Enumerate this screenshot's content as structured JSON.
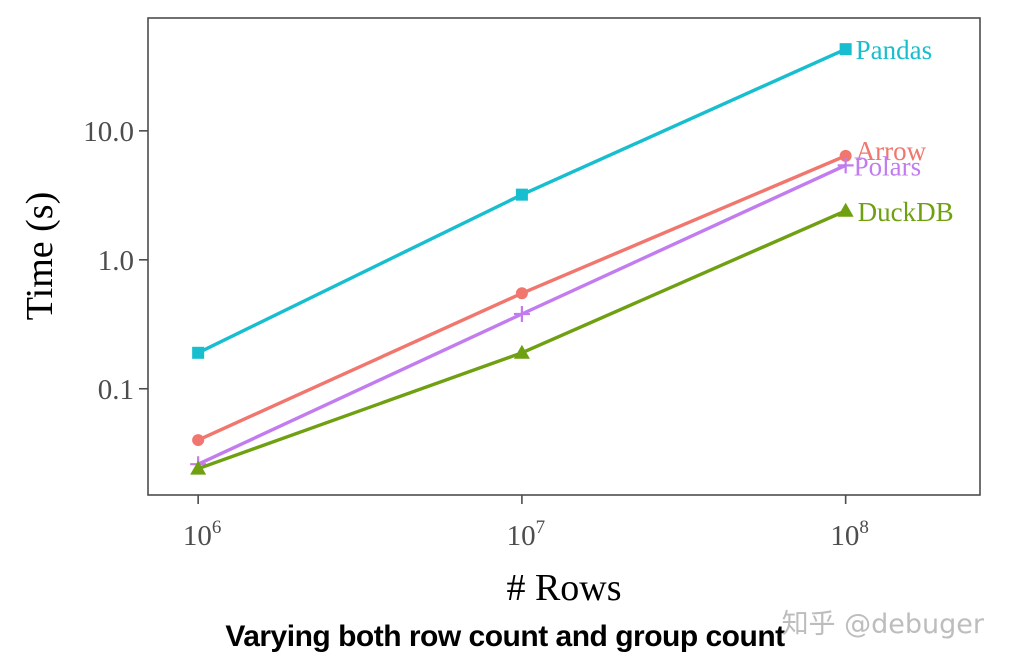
{
  "chart_data": {
    "type": "line",
    "title": "",
    "xlabel": "# Rows",
    "ylabel": "Time (s)",
    "x_scale": "log",
    "y_scale": "log",
    "x": [
      1000000,
      10000000,
      100000000
    ],
    "x_ticks": [
      {
        "value": 1000000,
        "base": "10",
        "exp": "6"
      },
      {
        "value": 10000000,
        "base": "10",
        "exp": "7"
      },
      {
        "value": 100000000,
        "base": "10",
        "exp": "8"
      }
    ],
    "y_ticks": [
      {
        "value": 0.1,
        "label": "0.1"
      },
      {
        "value": 1.0,
        "label": "1.0"
      },
      {
        "value": 10.0,
        "label": "10.0"
      }
    ],
    "xlim": [
      700000,
      260000000
    ],
    "ylim": [
      0.015,
      75
    ],
    "grid": false,
    "legend": "direct-labels-at-line-ends",
    "series": [
      {
        "name": "Pandas",
        "color": "#17becf",
        "marker": "square",
        "values": [
          0.19,
          3.2,
          43
        ]
      },
      {
        "name": "Arrow",
        "color": "#f0766e",
        "marker": "circle",
        "values": [
          0.04,
          0.55,
          6.4
        ]
      },
      {
        "name": "Polars",
        "color": "#c27cf0",
        "marker": "plus",
        "values": [
          0.026,
          0.38,
          5.4
        ]
      },
      {
        "name": "DuckDB",
        "color": "#6fa012",
        "marker": "triangle",
        "values": [
          0.024,
          0.19,
          2.4
        ]
      }
    ]
  },
  "caption": "Varying both row count and group count",
  "watermark": "知乎 @debuger"
}
